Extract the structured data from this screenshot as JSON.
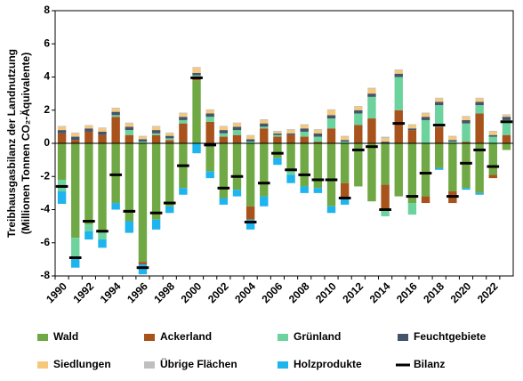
{
  "chart_data": {
    "type": "stacked_bar",
    "ylabel": [
      "Treibhausgasbilanz der Landnutzung",
      "(Millionen Tonnen CO₂-Äquivalente)"
    ],
    "categories": [
      "1990",
      null,
      "1992",
      null,
      "1994",
      null,
      "1996",
      null,
      "1998",
      null,
      "2000",
      null,
      "2002",
      null,
      "2004",
      null,
      "2006",
      null,
      "2008",
      null,
      "2010",
      null,
      "2012",
      null,
      "2014",
      null,
      "2016",
      null,
      "2018",
      null,
      "2020",
      null,
      "2022",
      null
    ],
    "ylim": [
      -8,
      8
    ],
    "yticks": [
      -8,
      -6,
      -4,
      -2,
      0,
      2,
      4,
      6,
      8
    ],
    "series": [
      {
        "name": "Wald",
        "color": "#70a845",
        "values": [
          -2.2,
          -5.7,
          -4.9,
          -5.4,
          -3.6,
          -4.7,
          -7.15,
          -4.6,
          -3.8,
          -2.7,
          3.8,
          -1.7,
          -3.3,
          -2.8,
          -3.8,
          -3.2,
          -0.9,
          -1.6,
          -2.6,
          -2.7,
          -3.8,
          -2.4,
          -2.6,
          -3.5,
          -2.5,
          -3.2,
          -3.6,
          -3.2,
          -1.5,
          -2.9,
          -2.7,
          -3.0,
          -1.9,
          -0.4
        ]
      },
      {
        "name": "Ackerland",
        "color": "#a8521c",
        "values": [
          0.6,
          0.2,
          0.7,
          0.5,
          1.6,
          0.5,
          -0.15,
          0.5,
          0.2,
          1.2,
          0.1,
          1.3,
          0.4,
          0.5,
          -0.8,
          0.9,
          0.4,
          0.5,
          0.4,
          0.1,
          0.9,
          -0.9,
          1.1,
          1.5,
          -1.5,
          2.0,
          0.8,
          -0.4,
          1.0,
          -0.7,
          0.1,
          1.8,
          -0.2,
          0.5
        ]
      },
      {
        "name": "Grünland",
        "color": "#6dd39e",
        "values": [
          -0.7,
          -1.2,
          -0.4,
          -0.4,
          0.1,
          0.3,
          0.1,
          0.1,
          0.1,
          0.2,
          0.2,
          0.3,
          0.2,
          0.3,
          0.1,
          0.1,
          0.1,
          -0.3,
          0.3,
          0.3,
          0.6,
          0.1,
          0.7,
          1.3,
          -0.4,
          2.0,
          -0.7,
          1.4,
          1.3,
          0.1,
          1.1,
          0.5,
          0.4,
          0.9
        ]
      },
      {
        "name": "Feuchtgebiete",
        "color": "#44546a",
        "values": [
          0.2,
          0.2,
          0.2,
          0.2,
          0.2,
          0.2,
          0.15,
          0.2,
          0.15,
          0.2,
          0.15,
          0.2,
          0.2,
          0.2,
          0.15,
          0.2,
          0.1,
          0.1,
          0.2,
          0.2,
          0.2,
          0.1,
          0.2,
          0.2,
          0.1,
          0.2,
          0.1,
          0.2,
          0.2,
          0.1,
          0.2,
          0.2,
          0.1,
          0.2
        ]
      },
      {
        "name": "Siedlungen",
        "color": "#f5c87c",
        "values": [
          0.2,
          0.2,
          0.15,
          0.2,
          0.2,
          0.2,
          0.15,
          0.2,
          0.15,
          0.2,
          0.3,
          0.2,
          0.2,
          0.2,
          0.2,
          0.2,
          0.1,
          0.2,
          0.2,
          0.2,
          0.3,
          0.2,
          0.2,
          0.3,
          0.2,
          0.2,
          0.2,
          0.2,
          0.2,
          0.2,
          0.2,
          0.2,
          0.2,
          0.1
        ]
      },
      {
        "name": "Übrige Flächen",
        "color": "#bfbfbf",
        "values": [
          0.05,
          0.05,
          0.05,
          0.05,
          0.05,
          0.05,
          0.05,
          0.05,
          0.05,
          0.05,
          0.05,
          0.05,
          0.05,
          0.05,
          0.05,
          0.05,
          0.05,
          0.05,
          0.05,
          0.05,
          0.05,
          0.05,
          0.05,
          0.05,
          0.1,
          0.05,
          0.05,
          0.05,
          0.05,
          0.05,
          0.05,
          0.05,
          0.05,
          0.05
        ]
      },
      {
        "name": "Holzprodukte",
        "color": "#1eb4ee",
        "values": [
          -0.75,
          -0.6,
          -0.5,
          -0.5,
          -0.4,
          -0.7,
          -0.6,
          -0.6,
          -0.4,
          -0.4,
          -0.6,
          -0.4,
          -0.4,
          -0.4,
          -0.6,
          -0.6,
          -0.4,
          -0.5,
          -0.4,
          -0.3,
          -0.4,
          -0.4,
          0,
          0,
          0,
          0,
          0,
          0,
          -0.1,
          0,
          -0.1,
          -0.1,
          0,
          0
        ]
      }
    ],
    "balance": {
      "name": "Bilanz",
      "color": "#000000",
      "values": [
        -2.6,
        -6.9,
        -4.7,
        -5.3,
        -1.9,
        -4.1,
        -7.5,
        -4.2,
        -3.6,
        -1.35,
        3.95,
        -0.1,
        -2.7,
        -2.0,
        -4.75,
        -2.4,
        -0.6,
        -1.6,
        -1.9,
        -2.2,
        -2.2,
        -3.3,
        -0.4,
        -0.2,
        -4.0,
        1.2,
        -3.2,
        -1.8,
        1.1,
        -3.2,
        -1.2,
        -0.4,
        -1.4,
        1.3
      ]
    }
  }
}
